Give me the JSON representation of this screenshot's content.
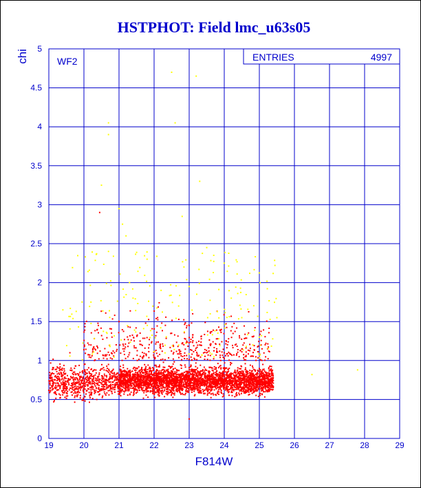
{
  "chart_data": {
    "type": "scatter",
    "title": "HSTPHOT: Field lmc_u63s05",
    "xlabel": "F814W",
    "ylabel": "chi",
    "panel_label": "WF2",
    "xlim": [
      19,
      29
    ],
    "ylim": [
      0,
      5
    ],
    "x_ticks": [
      "19",
      "20",
      "21",
      "22",
      "23",
      "24",
      "25",
      "26",
      "27",
      "28",
      "29"
    ],
    "y_ticks": [
      "0",
      "0.5",
      "1",
      "1.5",
      "2",
      "2.5",
      "3",
      "3.5",
      "4",
      "4.5",
      "5"
    ],
    "grid": true,
    "stats": {
      "label": "ENTRIES",
      "value": "4997"
    },
    "series": [
      {
        "color": "#ff0000",
        "points": [
          [
            19.1,
            0.75
          ],
          [
            19.3,
            0.9
          ],
          [
            19.5,
            0.62
          ],
          [
            19.7,
            0.85
          ],
          [
            19.9,
            0.55
          ],
          [
            20.1,
            0.8
          ],
          [
            20.3,
            1.0
          ],
          [
            20.5,
            0.7
          ],
          [
            20.7,
            0.95
          ],
          [
            20.9,
            0.68
          ],
          [
            20.45,
            2.9
          ],
          [
            19.6,
            1.1
          ],
          [
            20.2,
            1.2
          ],
          [
            20.8,
            1.3
          ],
          [
            21.0,
            1.5
          ],
          [
            21.3,
            1.1
          ],
          [
            21.5,
            0.78
          ],
          [
            21.8,
            0.7
          ],
          [
            22.0,
            0.82
          ],
          [
            22.3,
            0.65
          ],
          [
            22.6,
            0.9
          ],
          [
            22.9,
            0.72
          ],
          [
            23.2,
            0.8
          ],
          [
            23.5,
            0.68
          ],
          [
            23.8,
            0.75
          ],
          [
            24.1,
            0.7
          ],
          [
            24.4,
            0.78
          ],
          [
            24.7,
            0.72
          ],
          [
            25.0,
            0.66
          ],
          [
            25.3,
            0.7
          ],
          [
            22.5,
            1.35
          ],
          [
            23.0,
            1.45
          ],
          [
            23.3,
            1.2
          ],
          [
            21.6,
            1.25
          ],
          [
            24.0,
            1.1
          ],
          [
            24.6,
            1.05
          ],
          [
            25.1,
            0.95
          ],
          [
            22.1,
            1.55
          ],
          [
            23.1,
            1.6
          ],
          [
            23.0,
            0.25
          ]
        ]
      },
      {
        "color": "#ffff00",
        "points": [
          [
            22.5,
            4.7
          ],
          [
            23.2,
            4.65
          ],
          [
            20.7,
            4.05
          ],
          [
            20.7,
            3.9
          ],
          [
            22.6,
            4.05
          ],
          [
            23.3,
            3.3
          ],
          [
            20.5,
            3.25
          ],
          [
            21.0,
            2.95
          ],
          [
            22.8,
            2.85
          ],
          [
            21.1,
            2.75
          ],
          [
            21.2,
            2.6
          ],
          [
            23.5,
            2.45
          ],
          [
            20.7,
            2.4
          ],
          [
            21.8,
            2.3
          ],
          [
            23.7,
            2.35
          ],
          [
            24.0,
            2.25
          ],
          [
            21.3,
            2.0
          ],
          [
            22.2,
            1.9
          ],
          [
            23.0,
            1.95
          ],
          [
            24.2,
            1.8
          ],
          [
            19.4,
            1.65
          ],
          [
            20.2,
            1.75
          ],
          [
            21.4,
            1.8
          ],
          [
            22.7,
            1.7
          ],
          [
            23.6,
            1.6
          ],
          [
            24.5,
            1.55
          ],
          [
            25.0,
            1.3
          ],
          [
            25.5,
            1.55
          ],
          [
            26.5,
            0.82
          ],
          [
            27.8,
            0.88
          ]
        ]
      }
    ]
  }
}
